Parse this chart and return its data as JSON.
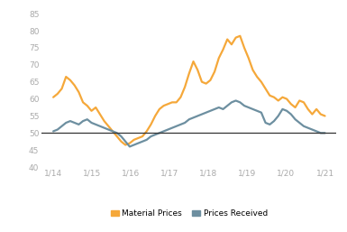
{
  "ylim": [
    40,
    87
  ],
  "yticks": [
    40,
    45,
    50,
    55,
    60,
    65,
    70,
    75,
    80,
    85
  ],
  "xtick_labels": [
    "1/14",
    "1/15",
    "1/16",
    "1/17",
    "1/18",
    "1/19",
    "1/20",
    "1/21"
  ],
  "background_color": "#ffffff",
  "reference_line": 50,
  "material_prices_color": "#f5a83a",
  "prices_received_color": "#6d8fa0",
  "reference_line_color": "#333333",
  "legend_labels": [
    "Material Prices",
    "Prices Received"
  ],
  "material_prices": [
    60.5,
    61.5,
    63.0,
    66.5,
    65.5,
    64.0,
    62.0,
    59.0,
    58.0,
    56.5,
    57.5,
    55.5,
    53.5,
    52.0,
    50.5,
    49.0,
    47.5,
    46.5,
    47.0,
    48.0,
    48.5,
    49.0,
    50.5,
    52.5,
    55.0,
    57.0,
    58.0,
    58.5,
    59.0,
    59.0,
    60.5,
    63.5,
    67.5,
    71.0,
    68.5,
    65.0,
    64.5,
    65.5,
    68.0,
    72.0,
    74.5,
    77.5,
    76.0,
    78.0,
    78.5,
    75.0,
    72.0,
    68.5,
    66.5,
    65.0,
    63.0,
    61.0,
    60.5,
    59.5,
    60.5,
    60.0,
    58.5,
    57.5,
    59.5,
    59.0,
    57.0,
    55.5,
    57.0,
    55.5,
    55.0
  ],
  "prices_received": [
    50.5,
    51.0,
    52.0,
    53.0,
    53.5,
    53.0,
    52.5,
    53.5,
    54.0,
    53.0,
    52.5,
    52.0,
    51.5,
    51.0,
    50.5,
    50.0,
    49.0,
    47.5,
    46.0,
    46.5,
    47.0,
    47.5,
    48.0,
    49.0,
    49.5,
    50.0,
    50.5,
    51.0,
    51.5,
    52.0,
    52.5,
    53.0,
    54.0,
    54.5,
    55.0,
    55.5,
    56.0,
    56.5,
    57.0,
    57.5,
    57.0,
    58.0,
    59.0,
    59.5,
    59.0,
    58.0,
    57.5,
    57.0,
    56.5,
    56.0,
    53.0,
    52.5,
    53.5,
    55.0,
    57.0,
    56.5,
    55.5,
    54.0,
    53.0,
    52.0,
    51.5,
    51.0,
    50.5,
    50.0,
    50.0
  ]
}
